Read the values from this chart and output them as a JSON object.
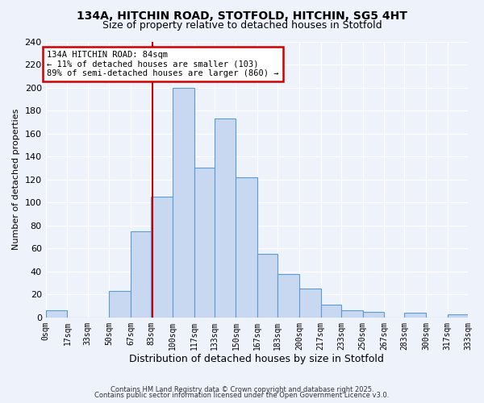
{
  "title1": "134A, HITCHIN ROAD, STOTFOLD, HITCHIN, SG5 4HT",
  "title2": "Size of property relative to detached houses in Stotfold",
  "xlabel": "Distribution of detached houses by size in Stotfold",
  "ylabel": "Number of detached properties",
  "bin_edges": [
    0,
    17,
    33,
    50,
    67,
    83,
    100,
    117,
    133,
    150,
    167,
    183,
    200,
    217,
    233,
    250,
    267,
    283,
    300,
    317,
    333
  ],
  "bin_labels": [
    "0sqm",
    "17sqm",
    "33sqm",
    "50sqm",
    "67sqm",
    "83sqm",
    "100sqm",
    "117sqm",
    "133sqm",
    "150sqm",
    "167sqm",
    "183sqm",
    "200sqm",
    "217sqm",
    "233sqm",
    "250sqm",
    "267sqm",
    "283sqm",
    "300sqm",
    "317sqm",
    "333sqm"
  ],
  "counts": [
    6,
    0,
    0,
    23,
    75,
    105,
    200,
    130,
    173,
    122,
    55,
    38,
    25,
    11,
    6,
    5,
    0,
    4,
    0,
    3
  ],
  "bar_color": "#c8d8f0",
  "bar_edge_color": "#5b9bd5",
  "vline_x": 84,
  "vline_color": "#cc0000",
  "annotation_title": "134A HITCHIN ROAD: 84sqm",
  "annotation_line1": "← 11% of detached houses are smaller (103)",
  "annotation_line2": "89% of semi-detached houses are larger (860) →",
  "annotation_box_color": "#cc0000",
  "ylim": [
    0,
    240
  ],
  "yticks": [
    0,
    20,
    40,
    60,
    80,
    100,
    120,
    140,
    160,
    180,
    200,
    220,
    240
  ],
  "footer1": "Contains HM Land Registry data © Crown copyright and database right 2025.",
  "footer2": "Contains public sector information licensed under the Open Government Licence v3.0.",
  "bg_color": "#eef2fb",
  "grid_color": "#ffffff",
  "title1_fontsize": 10,
  "title2_fontsize": 9,
  "axis_label_fontsize": 8,
  "tick_fontsize": 7,
  "footer_fontsize": 6
}
